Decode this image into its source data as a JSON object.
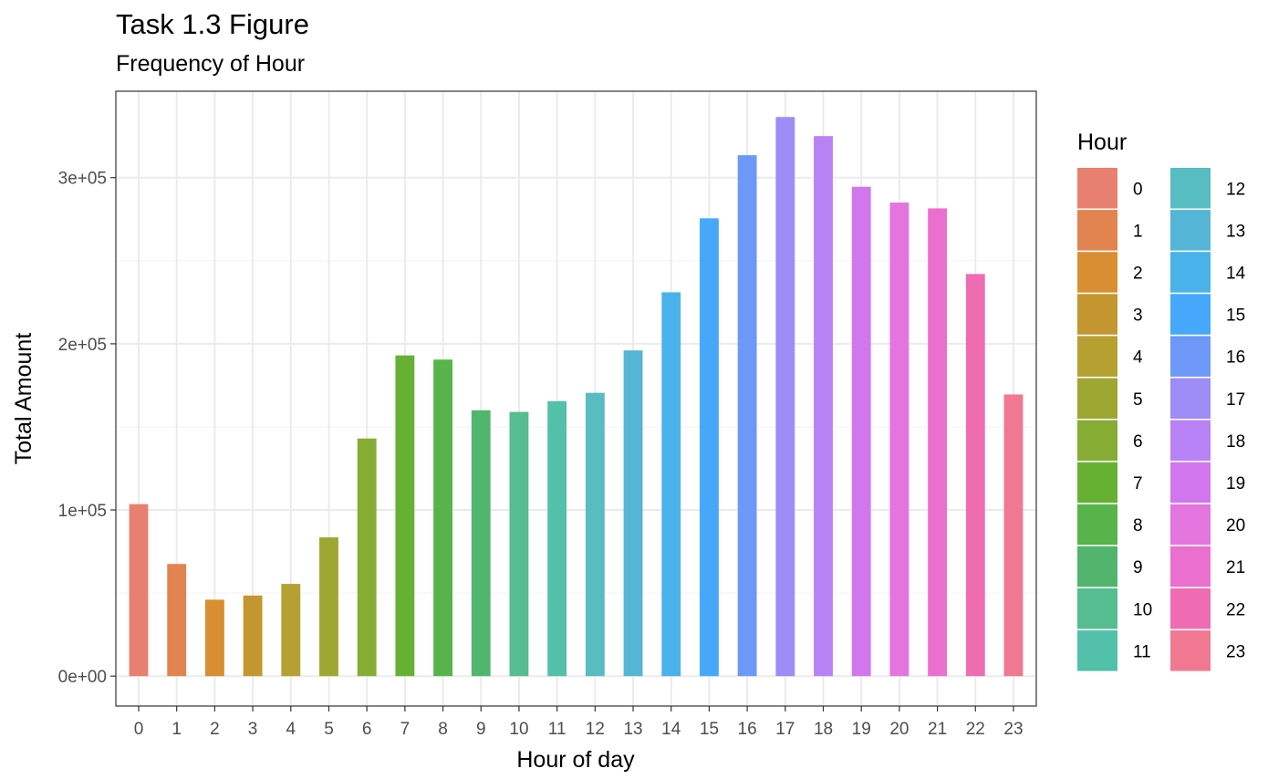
{
  "chart_data": {
    "type": "bar",
    "title": "Task 1.3 Figure",
    "subtitle": "Frequency of Hour",
    "xlabel": "Hour of day",
    "ylabel": "Total Amount",
    "categories": [
      "0",
      "1",
      "2",
      "3",
      "4",
      "5",
      "6",
      "7",
      "8",
      "9",
      "10",
      "11",
      "12",
      "13",
      "14",
      "15",
      "16",
      "17",
      "18",
      "19",
      "20",
      "21",
      "22",
      "23"
    ],
    "values": [
      103500,
      67500,
      46000,
      48500,
      55500,
      83500,
      143000,
      193000,
      190500,
      160000,
      159000,
      165500,
      170500,
      196000,
      231000,
      275500,
      313500,
      336500,
      325000,
      294500,
      285000,
      281500,
      242000,
      169500
    ],
    "ylim": [
      -18000,
      352000
    ],
    "yticks": [
      {
        "value": 0,
        "label": "0e+00"
      },
      {
        "value": 100000,
        "label": "1e+05"
      },
      {
        "value": 200000,
        "label": "2e+05"
      },
      {
        "value": 300000,
        "label": "3e+05"
      }
    ],
    "grid": true,
    "legend": {
      "title": "Hour",
      "position": "right",
      "columns": 2,
      "labels": [
        "0",
        "1",
        "2",
        "3",
        "4",
        "5",
        "6",
        "7",
        "8",
        "9",
        "10",
        "11",
        "12",
        "13",
        "14",
        "15",
        "16",
        "17",
        "18",
        "19",
        "20",
        "21",
        "22",
        "23"
      ]
    },
    "colors": [
      "#F8766D",
      "#F27D52",
      "#E7861B",
      "#DB8E00",
      "#CE9700",
      "#BF9F00",
      "#AEA200",
      "#9CA700",
      "#84AD00",
      "#64B200",
      "#32B700",
      "#00BA38",
      "#00BD5C",
      "#00BF7A",
      "#00C094",
      "#00C0AB",
      "#00BFC4",
      "#00BCD8",
      "#00B8E5",
      "#00B2F3",
      "#00ABFD",
      "#00A5FF",
      "#619CFF",
      "#8F91FF"
    ],
    "hour_colors": [
      "#E8806F",
      "#E2844F",
      "#D98F31",
      "#C49630",
      "#B5A031",
      "#9FA733",
      "#86AC33",
      "#66B132",
      "#56B44A",
      "#51B56D",
      "#55BD8F",
      "#53C0A9",
      "#58BCC3",
      "#54B5D6",
      "#4AB2EB",
      "#46A8FB",
      "#6D98F8",
      "#9E8CF7",
      "#B882F7",
      "#D276EE",
      "#E475DF",
      "#EB6FCE",
      "#F06CB2",
      "#F07891"
    ]
  }
}
